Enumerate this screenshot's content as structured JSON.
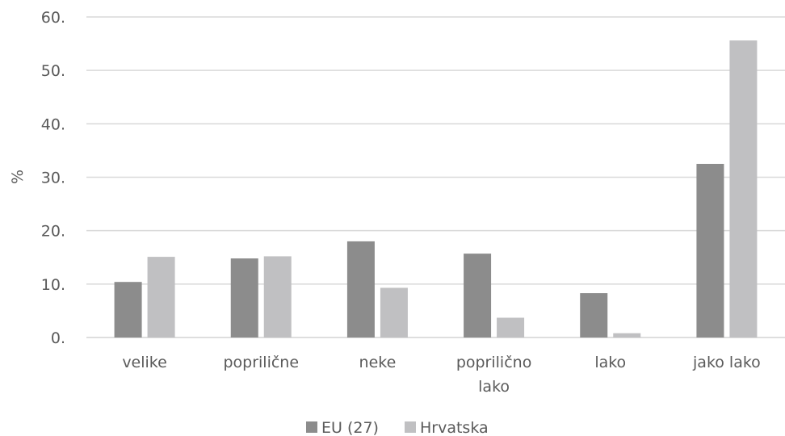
{
  "chart_data": {
    "type": "bar",
    "title": "",
    "xlabel": "",
    "ylabel": "%",
    "categories": [
      [
        "velike"
      ],
      [
        "popriličn​e"
      ],
      [
        "neke"
      ],
      [
        "popriličn​o",
        "lako"
      ],
      [
        "lako"
      ],
      [
        "jako lako"
      ]
    ],
    "yticks": [
      "0.",
      "10.",
      "20.",
      "30.",
      "40.",
      "50.",
      "60."
    ],
    "ylim": [
      0,
      60
    ],
    "grid": true,
    "legend_position": "bottom",
    "series": [
      {
        "name": "EU (27)",
        "color": "#8c8c8c",
        "values": [
          10.4,
          14.8,
          18.0,
          15.7,
          8.3,
          32.5
        ]
      },
      {
        "name": "Hrvatska",
        "color": "#c0c0c2",
        "values": [
          15.1,
          15.2,
          9.3,
          3.7,
          0.8,
          55.6
        ]
      }
    ]
  }
}
